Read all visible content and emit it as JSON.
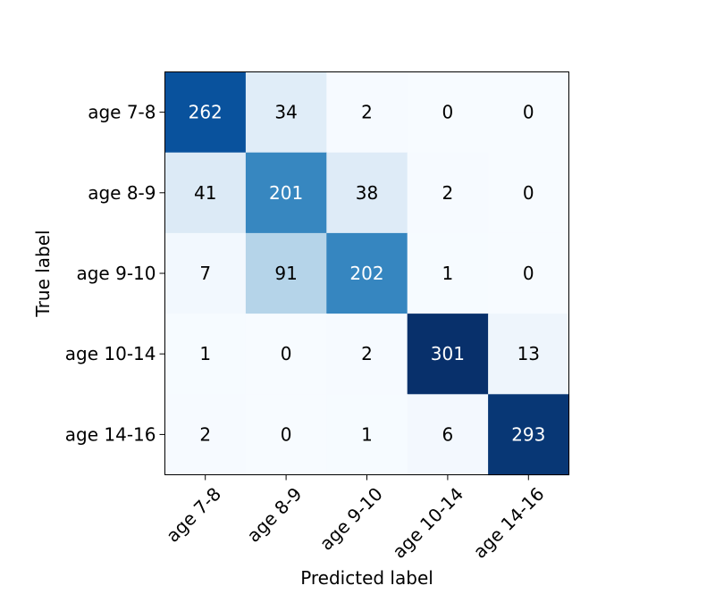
{
  "chart_data": {
    "type": "heatmap",
    "title": "",
    "xlabel": "Predicted label",
    "ylabel": "True label",
    "x_categories": [
      "age 7-8",
      "age 8-9",
      "age 9-10",
      "age 10-14",
      "age 14-16"
    ],
    "y_categories": [
      "age 7-8",
      "age 8-9",
      "age 9-10",
      "age 10-14",
      "age 14-16"
    ],
    "values": [
      [
        262,
        34,
        2,
        0,
        0
      ],
      [
        41,
        201,
        38,
        2,
        0
      ],
      [
        7,
        91,
        202,
        1,
        0
      ],
      [
        1,
        0,
        2,
        301,
        13
      ],
      [
        2,
        0,
        1,
        6,
        293
      ]
    ],
    "colormap": "Blues",
    "color_range": [
      0,
      301
    ],
    "colors": {
      "low": "#f7fbff",
      "high": "#08306b",
      "text_dark": "#000000",
      "text_light": "#ffffff"
    },
    "grid": false,
    "legend": "none"
  }
}
